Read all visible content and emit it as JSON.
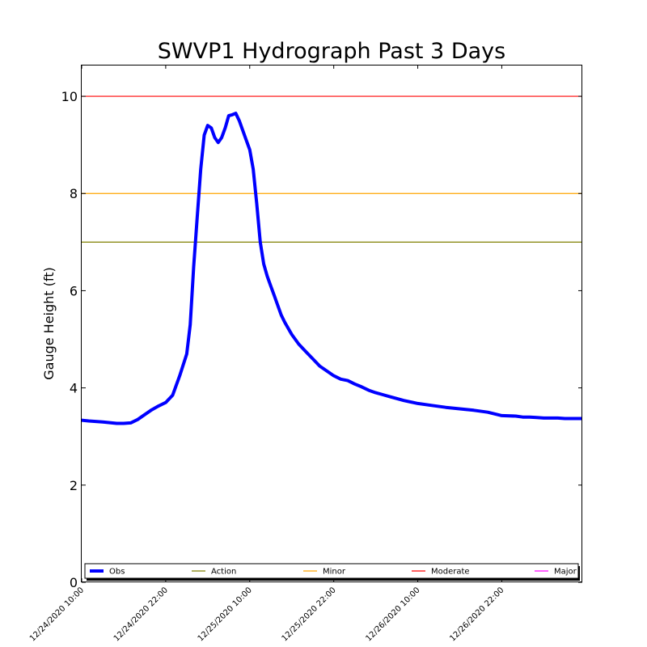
{
  "chart_data": {
    "type": "line",
    "title": "SWVP1 Hydrograph Past 3 Days",
    "xlabel": "",
    "ylabel": "Gauge Height (ft)",
    "x_unit": "hours since first tick (12/24/2020 10:00)",
    "xlim": [
      0,
      71.5
    ],
    "ylim": [
      0,
      10.65
    ],
    "x_tick_values": [
      0,
      12,
      24,
      36,
      48,
      60
    ],
    "x_tick_labels": [
      "12/24/2020 10:00",
      "12/24/2020 22:00",
      "12/25/2020 10:00",
      "12/25/2020 22:00",
      "12/26/2020 10:00",
      "12/26/2020 22:00"
    ],
    "y_ticks": [
      0,
      2,
      4,
      6,
      8,
      10
    ],
    "grid": false,
    "legend_position": "bottom",
    "series": [
      {
        "name": "Obs",
        "color": "#0000ff",
        "x": [
          -1.0,
          1.0,
          3.0,
          5.0,
          6.0,
          7.0,
          8.0,
          9.0,
          10.0,
          11.0,
          12.0,
          13.0,
          14.0,
          15.0,
          15.5,
          16.0,
          16.5,
          17.0,
          17.5,
          18.0,
          18.5,
          19.0,
          19.5,
          20.0,
          20.5,
          21.0,
          21.5,
          22.0,
          22.5,
          23.0,
          23.5,
          24.0,
          24.5,
          25.0,
          25.5,
          26.0,
          26.5,
          27.0,
          27.5,
          28.0,
          28.5,
          29.0,
          30.0,
          31.0,
          32.0,
          33.0,
          34.0,
          35.0,
          36.0,
          37.0,
          38.0,
          39.0,
          40.0,
          41.0,
          42.0,
          43.0,
          44.0,
          45.0,
          46.0,
          48.0,
          50.0,
          52.0,
          54.0,
          56.0,
          58.0,
          60.0,
          62.0,
          63.0,
          64.0,
          65.0,
          66.0,
          67.0,
          68.0,
          69.0,
          70.0,
          71.5
        ],
        "values": [
          3.35,
          3.32,
          3.3,
          3.27,
          3.27,
          3.28,
          3.35,
          3.45,
          3.55,
          3.63,
          3.7,
          3.85,
          4.25,
          4.7,
          5.3,
          6.5,
          7.5,
          8.5,
          9.2,
          9.4,
          9.35,
          9.15,
          9.05,
          9.15,
          9.35,
          9.6,
          9.62,
          9.65,
          9.5,
          9.3,
          9.1,
          8.9,
          8.5,
          7.8,
          7.0,
          6.55,
          6.3,
          6.1,
          5.9,
          5.7,
          5.5,
          5.35,
          5.1,
          4.9,
          4.75,
          4.6,
          4.45,
          4.35,
          4.25,
          4.18,
          4.15,
          4.08,
          4.02,
          3.95,
          3.9,
          3.86,
          3.82,
          3.78,
          3.74,
          3.68,
          3.64,
          3.6,
          3.57,
          3.54,
          3.5,
          3.43,
          3.42,
          3.4,
          3.4,
          3.39,
          3.38,
          3.38,
          3.38,
          3.37,
          3.37,
          3.37
        ]
      },
      {
        "name": "Action",
        "color": "#808000",
        "y": 7
      },
      {
        "name": "Minor",
        "color": "#ffa500",
        "y": 8
      },
      {
        "name": "Moderate",
        "color": "#ff0000",
        "y": 10
      },
      {
        "name": "Major",
        "color": "#ff00ff",
        "y": null
      }
    ]
  }
}
